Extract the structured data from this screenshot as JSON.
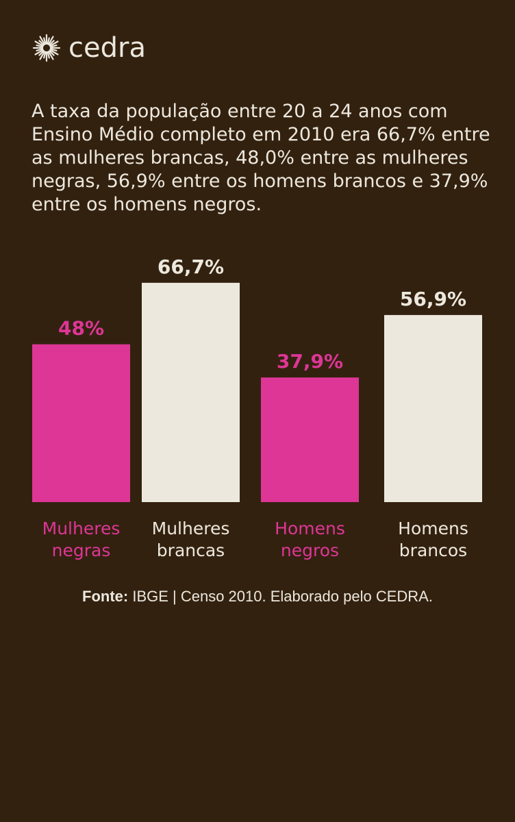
{
  "brand": {
    "name": "cedra",
    "logo_icon": "sun-burst-icon"
  },
  "intro_text": "A taxa da população entre 20 a 24 anos com Ensino Médio completo em 2010 era 66,7% entre as mulheres brancas, 48,0% entre as mulheres negras, 56,9% entre os homens brancos e 37,9% entre os homens negros.",
  "colors": {
    "background": "#33210f",
    "pink": "#dd3696",
    "cream": "#ece8de"
  },
  "chart_data": {
    "type": "bar",
    "title": "",
    "xlabel": "",
    "ylabel": "",
    "ylim": [
      0,
      100
    ],
    "grid": false,
    "categories": [
      [
        "Mulheres",
        "negras"
      ],
      [
        "Mulheres",
        "brancas"
      ],
      [
        "Homens",
        "negros"
      ],
      [
        "Homens",
        "brancos"
      ]
    ],
    "values": [
      48.0,
      66.7,
      37.9,
      56.9
    ],
    "value_labels": [
      "48%",
      "66,7%",
      "37,9%",
      "56,9%"
    ],
    "bar_colors": [
      "#dd3696",
      "#ece8de",
      "#dd3696",
      "#ece8de"
    ]
  },
  "source": {
    "label": "Fonte:",
    "text": " IBGE | Censo 2010. Elaborado pelo CEDRA."
  }
}
